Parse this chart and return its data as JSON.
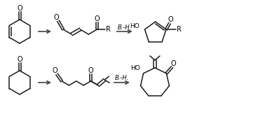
{
  "bg_color": "#ffffff",
  "line_color": "#1a1a1a",
  "line_width": 1.1,
  "arrow_color": "#444444",
  "text_color": "#000000",
  "bh_label": "B.-H.",
  "R_label": "R",
  "O_label": "O",
  "HO_label": "HO",
  "fig_width": 3.78,
  "fig_height": 1.63,
  "dpi": 100
}
